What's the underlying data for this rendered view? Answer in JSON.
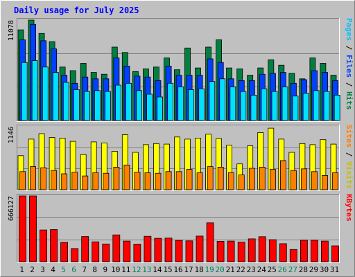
{
  "chart_data": [
    {
      "type": "bar",
      "title": "Daily usage for July 2025",
      "categories": [
        "1",
        "2",
        "3",
        "4",
        "5",
        "6",
        "7",
        "8",
        "9",
        "10",
        "11",
        "12",
        "13",
        "14",
        "15",
        "16",
        "17",
        "18",
        "19",
        "20",
        "21",
        "22",
        "23",
        "24",
        "25",
        "26",
        "27",
        "28",
        "29",
        "30",
        "31"
      ],
      "weekend_days": [
        "5",
        "6",
        "12",
        "13",
        "19",
        "20",
        "26",
        "27"
      ],
      "ylabel_max": "11078",
      "ylim": [
        0,
        11078
      ],
      "side_label": {
        "parts": [
          "Pages",
          "Files",
          "Hits"
        ],
        "separator": " / "
      },
      "series": [
        {
          "name": "Hits",
          "color": "#008040",
          "values": [
            10000,
            11078,
            9600,
            8700,
            5900,
            5500,
            6300,
            5300,
            5100,
            8100,
            7500,
            5400,
            5700,
            5900,
            6900,
            5600,
            8000,
            5800,
            8100,
            8900,
            5800,
            5700,
            5000,
            5800,
            6700,
            6100,
            5200,
            4600,
            6900,
            6300,
            5000
          ]
        },
        {
          "name": "Files",
          "color": "#0040ff",
          "values": [
            8900,
            10600,
            8800,
            7900,
            5000,
            4100,
            4800,
            4600,
            4600,
            6900,
            6000,
            4900,
            4800,
            4400,
            6000,
            5000,
            5000,
            5000,
            6800,
            6400,
            4600,
            4400,
            4400,
            5100,
            5200,
            5300,
            4100,
            4500,
            5500,
            5300,
            4400
          ]
        },
        {
          "name": "Pages",
          "color": "#00e0ff",
          "values": [
            6400,
            6600,
            5900,
            5300,
            4200,
            3400,
            3200,
            3300,
            3200,
            3900,
            4100,
            3300,
            2900,
            2600,
            4100,
            3700,
            3400,
            3500,
            4300,
            4600,
            3700,
            3200,
            2800,
            3500,
            3200,
            3700,
            2700,
            3000,
            3300,
            3200,
            2800
          ]
        }
      ]
    },
    {
      "type": "bar",
      "categories": [
        "1",
        "2",
        "3",
        "4",
        "5",
        "6",
        "7",
        "8",
        "9",
        "10",
        "11",
        "12",
        "13",
        "14",
        "15",
        "16",
        "17",
        "18",
        "19",
        "20",
        "21",
        "22",
        "23",
        "24",
        "25",
        "26",
        "27",
        "28",
        "29",
        "30",
        "31"
      ],
      "ylabel_max": "1146",
      "ylim": [
        0,
        1146
      ],
      "side_label": {
        "parts": [
          "Sites",
          "Visits"
        ],
        "separator": " / "
      },
      "series": [
        {
          "name": "Visits",
          "color": "#ffff00",
          "values": [
            620,
            920,
            1020,
            950,
            940,
            880,
            640,
            870,
            850,
            700,
            1000,
            680,
            820,
            840,
            830,
            960,
            920,
            940,
            1010,
            930,
            810,
            470,
            800,
            1040,
            1120,
            920,
            680,
            840,
            820,
            910,
            830
          ]
        },
        {
          "name": "Sites",
          "color": "#ff8000",
          "values": [
            330,
            420,
            400,
            350,
            290,
            320,
            250,
            310,
            300,
            410,
            450,
            320,
            310,
            300,
            330,
            330,
            370,
            310,
            420,
            410,
            310,
            270,
            390,
            410,
            370,
            530,
            350,
            380,
            330,
            260,
            310
          ]
        }
      ]
    },
    {
      "type": "bar",
      "categories": [
        "1",
        "2",
        "3",
        "4",
        "5",
        "6",
        "7",
        "8",
        "9",
        "10",
        "11",
        "12",
        "13",
        "14",
        "15",
        "16",
        "17",
        "18",
        "19",
        "20",
        "21",
        "22",
        "23",
        "24",
        "25",
        "26",
        "27",
        "28",
        "29",
        "30",
        "31"
      ],
      "ylabel_max": "666127",
      "ylim": [
        0,
        666127
      ],
      "side_label": {
        "parts": [
          "KBytes"
        ],
        "separator": ""
      },
      "series": [
        {
          "name": "KBytes",
          "color": "#ff0000",
          "values": [
            666127,
            666127,
            322000,
            326000,
            196000,
            134000,
            255000,
            202000,
            180000,
            272000,
            210000,
            179000,
            258000,
            238000,
            240000,
            217000,
            212000,
            260000,
            394000,
            207000,
            210000,
            199000,
            232000,
            254000,
            224000,
            183000,
            124000,
            218000,
            218000,
            210000,
            161000
          ]
        }
      ]
    }
  ],
  "colors": {
    "background": "#c0c0c0",
    "title_text": "#0000ff",
    "pages_label": "#00c0ff",
    "files_label": "#0040ff",
    "hits_label": "#008040",
    "sites_label": "#ff8000",
    "visits_label": "#c0c000",
    "kbytes_label": "#ff0000",
    "weekday_label": "#000000",
    "weekend_label": "#00805c"
  }
}
